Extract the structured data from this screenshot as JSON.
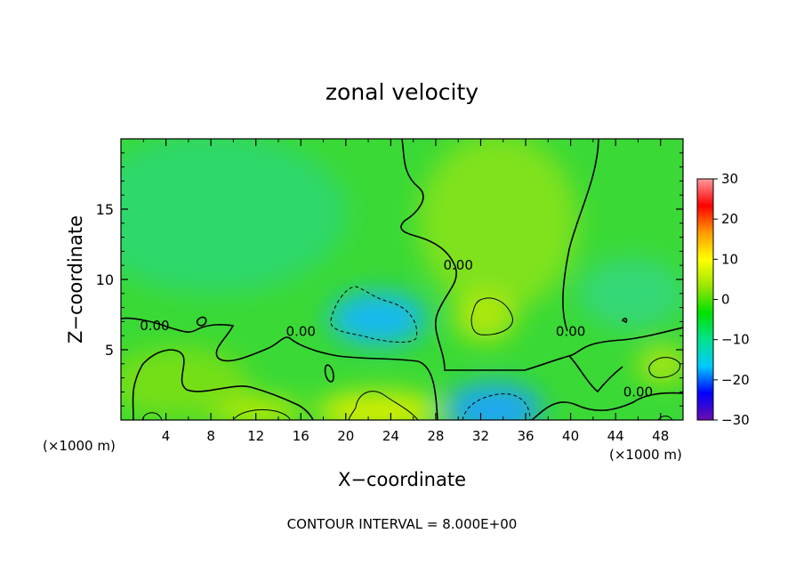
{
  "chart_data": {
    "type": "heatmap",
    "title": "zonal velocity",
    "xlabel": "X−coordinate",
    "ylabel": "Z−coordinate",
    "x_unit_left": "(×1000 m)",
    "x_unit_right": "(×1000 m)",
    "footer": "CONTOUR INTERVAL = 8.000E+00",
    "xlim": [
      0,
      50
    ],
    "ylim": [
      0,
      20
    ],
    "x_ticks": [
      4,
      8,
      12,
      16,
      20,
      24,
      28,
      32,
      36,
      40,
      44,
      48
    ],
    "y_ticks": [
      5,
      10,
      15
    ],
    "colorbar": {
      "range": [
        -30,
        30
      ],
      "ticks": [
        30,
        20,
        10,
        0,
        -10,
        -20,
        -30
      ],
      "tick_labels": [
        "30",
        "20",
        "10",
        "0",
        "−10",
        "−20",
        "−30"
      ],
      "colors": [
        "#6a0dad",
        "#0000ff",
        "#00c8ff",
        "#00e38c",
        "#00e100",
        "#9be600",
        "#ffff00",
        "#ff9900",
        "#ff0000",
        "#ff9a9a"
      ]
    },
    "contour_labels": [
      {
        "text": "0.00",
        "x": 3.0,
        "z": 6.7
      },
      {
        "text": "0.00",
        "x": 16.0,
        "z": 6.3
      },
      {
        "text": "0.00",
        "x": 30.0,
        "z": 11.0
      },
      {
        "text": "0.00",
        "x": 40.0,
        "z": 6.3
      },
      {
        "text": "0.00",
        "x": 46.0,
        "z": 2.0
      }
    ],
    "features": [
      {
        "name": "negative core upper",
        "x": 23,
        "z": 7,
        "value": -10
      },
      {
        "name": "negative core lower",
        "x": 33,
        "z": 0.6,
        "value": -14
      },
      {
        "name": "positive core",
        "x": 33,
        "z": 7.5,
        "value": 8
      },
      {
        "name": "positive surface",
        "x": 24,
        "z": 0.6,
        "value": 11
      },
      {
        "name": "positive right",
        "x": 48,
        "z": 4,
        "value": 8
      }
    ]
  }
}
